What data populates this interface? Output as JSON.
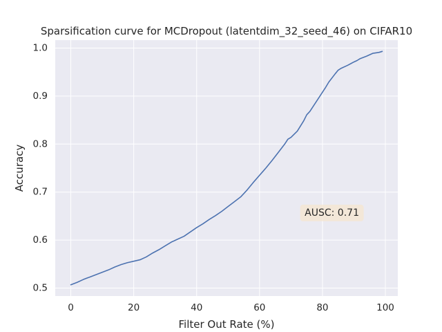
{
  "chart_data": {
    "type": "line",
    "title": "Sparsification curve for MCDropout (latentdim_32_seed_46) on CIFAR10",
    "xlabel": "Filter Out Rate (%)",
    "ylabel": "Accuracy",
    "xlim": [
      -4.95,
      103.95
    ],
    "ylim": [
      0.4835,
      1.0165
    ],
    "xticks": [
      0,
      20,
      40,
      60,
      80,
      100
    ],
    "yticks": [
      0.5,
      0.6,
      0.7,
      0.8,
      0.9,
      1.0
    ],
    "xtick_labels": [
      "0",
      "20",
      "40",
      "60",
      "80",
      "100"
    ],
    "ytick_labels": [
      "0.5",
      "0.6",
      "0.7",
      "0.8",
      "0.9",
      "1.0"
    ],
    "grid": true,
    "background": "#eaeaf2",
    "line_color": "#4c72b0",
    "annotation": {
      "text": "AUSC: 0.71",
      "x": 83,
      "y": 0.6565,
      "box_color": "#f5e6d3"
    },
    "series": [
      {
        "x": [
          0,
          2,
          4,
          6,
          8,
          10,
          12,
          14,
          16,
          18,
          20,
          22,
          24,
          26,
          28,
          30,
          32,
          34,
          36,
          38,
          40,
          42,
          44,
          46,
          48,
          50,
          52,
          54,
          56,
          58,
          60,
          62,
          64,
          66,
          68,
          69,
          70,
          72,
          74,
          75,
          76,
          78,
          80,
          81,
          82,
          84,
          85,
          86,
          88,
          90,
          91,
          92,
          94,
          96,
          97,
          98,
          99
        ],
        "y": [
          0.507,
          0.512,
          0.518,
          0.523,
          0.528,
          0.533,
          0.538,
          0.544,
          0.549,
          0.553,
          0.556,
          0.559,
          0.565,
          0.573,
          0.58,
          0.588,
          0.596,
          0.602,
          0.608,
          0.617,
          0.626,
          0.634,
          0.643,
          0.651,
          0.66,
          0.67,
          0.68,
          0.69,
          0.704,
          0.72,
          0.735,
          0.75,
          0.766,
          0.783,
          0.8,
          0.81,
          0.814,
          0.827,
          0.848,
          0.861,
          0.868,
          0.888,
          0.908,
          0.918,
          0.929,
          0.946,
          0.954,
          0.958,
          0.964,
          0.971,
          0.974,
          0.978,
          0.983,
          0.989,
          0.99,
          0.991,
          0.993
        ]
      }
    ]
  }
}
